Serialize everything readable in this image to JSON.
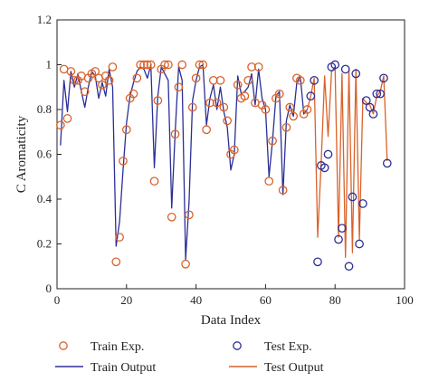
{
  "chart_data": {
    "type": "line",
    "xlabel": "Data Index",
    "ylabel": "C Aromaticity",
    "xlim": [
      0,
      100
    ],
    "ylim": [
      0,
      1.2
    ],
    "xticks": [
      0,
      20,
      40,
      60,
      80,
      100
    ],
    "yticks": [
      0,
      0.2,
      0.4,
      0.6,
      0.8,
      1,
      1.2
    ],
    "grid": false,
    "legend_position": "bottom",
    "series": [
      {
        "name": "Train Exp.",
        "kind": "scatter",
        "marker": "open-circle",
        "color": "#d9622b",
        "x": [
          1,
          2,
          3,
          4,
          5,
          6,
          7,
          8,
          9,
          10,
          11,
          12,
          13,
          14,
          15,
          16,
          17,
          18,
          19,
          20,
          21,
          22,
          23,
          24,
          25,
          26,
          27,
          28,
          29,
          30,
          31,
          32,
          33,
          34,
          35,
          36,
          37,
          38,
          39,
          40,
          41,
          42,
          43,
          44,
          45,
          46,
          47,
          48,
          49,
          50,
          51,
          52,
          53,
          54,
          55,
          56,
          57,
          58,
          59,
          60,
          61,
          62,
          63,
          64,
          65,
          66,
          67,
          68,
          69,
          70,
          71,
          72
        ],
        "y": [
          0.73,
          0.98,
          0.76,
          0.97,
          0.93,
          0.93,
          0.95,
          0.88,
          0.94,
          0.96,
          0.97,
          0.94,
          0.91,
          0.95,
          0.93,
          0.99,
          0.12,
          0.23,
          0.57,
          0.71,
          0.85,
          0.87,
          0.94,
          1.0,
          1.0,
          1.0,
          1.0,
          0.48,
          0.84,
          0.98,
          1.0,
          1.0,
          0.32,
          0.69,
          0.9,
          1.0,
          0.11,
          0.33,
          0.81,
          0.94,
          1.0,
          1.0,
          0.71,
          0.83,
          0.93,
          0.83,
          0.93,
          0.81,
          0.75,
          0.6,
          0.62,
          0.91,
          0.85,
          0.86,
          0.93,
          0.99,
          0.83,
          0.99,
          0.82,
          0.8,
          0.48,
          0.66,
          0.85,
          0.87,
          0.44,
          0.72,
          0.81,
          0.77,
          0.94,
          0.93,
          0.78,
          0.8
        ]
      },
      {
        "name": "Train Output",
        "kind": "line",
        "color": "#2b2f96",
        "x": [
          1,
          2,
          3,
          4,
          5,
          6,
          7,
          8,
          9,
          10,
          11,
          12,
          13,
          14,
          15,
          16,
          17,
          18,
          19,
          20,
          21,
          22,
          23,
          24,
          25,
          26,
          27,
          28,
          29,
          30,
          31,
          32,
          33,
          34,
          35,
          36,
          37,
          38,
          39,
          40,
          41,
          42,
          43,
          44,
          45,
          46,
          47,
          48,
          49,
          50,
          51,
          52,
          53,
          54,
          55,
          56,
          57,
          58,
          59,
          60,
          61,
          62,
          63,
          64,
          65,
          66,
          67,
          68,
          69,
          70,
          71,
          72
        ],
        "y": [
          0.64,
          0.93,
          0.79,
          0.97,
          0.9,
          0.96,
          0.88,
          0.81,
          0.9,
          0.97,
          0.95,
          0.85,
          0.92,
          0.86,
          0.98,
          0.9,
          0.19,
          0.3,
          0.53,
          0.74,
          0.86,
          0.92,
          0.97,
          0.99,
          0.98,
          0.94,
          1.0,
          0.54,
          0.86,
          0.99,
          0.96,
          0.93,
          0.36,
          0.7,
          0.99,
          0.93,
          0.13,
          0.39,
          0.84,
          0.93,
          0.99,
          1.0,
          0.73,
          0.85,
          0.91,
          0.8,
          0.9,
          0.79,
          0.72,
          0.53,
          0.6,
          0.95,
          0.87,
          0.88,
          0.9,
          0.96,
          0.82,
          0.98,
          0.85,
          0.8,
          0.5,
          0.66,
          0.86,
          0.88,
          0.42,
          0.75,
          0.82,
          0.77,
          0.92,
          0.95,
          0.78,
          0.8
        ]
      },
      {
        "name": "Test Exp.",
        "kind": "scatter",
        "marker": "open-circle",
        "color": "#2b2f96",
        "x": [
          73,
          74,
          75,
          76,
          77,
          78,
          79,
          80,
          81,
          82,
          83,
          84,
          85,
          86,
          87,
          88,
          89,
          90,
          91,
          92,
          93,
          94,
          95
        ],
        "y": [
          0.86,
          0.93,
          0.12,
          0.55,
          0.54,
          0.6,
          0.99,
          1.0,
          0.22,
          0.27,
          0.98,
          0.1,
          0.41,
          0.96,
          0.2,
          0.38,
          0.84,
          0.81,
          0.78,
          0.87,
          0.87,
          0.94,
          0.56
        ]
      },
      {
        "name": "Test Output",
        "kind": "line",
        "color": "#d9622b",
        "x": [
          72,
          73,
          74,
          75,
          76,
          77,
          78,
          79,
          80,
          81,
          82,
          83,
          84,
          85,
          86,
          87,
          88,
          89,
          90,
          91,
          92,
          93,
          94,
          95
        ],
        "y": [
          0.8,
          0.86,
          0.94,
          0.23,
          0.56,
          0.95,
          0.68,
          0.97,
          0.99,
          0.23,
          0.96,
          0.14,
          0.98,
          0.16,
          0.98,
          0.22,
          0.85,
          0.83,
          0.82,
          0.78,
          0.86,
          0.88,
          0.95,
          0.57
        ]
      }
    ]
  }
}
